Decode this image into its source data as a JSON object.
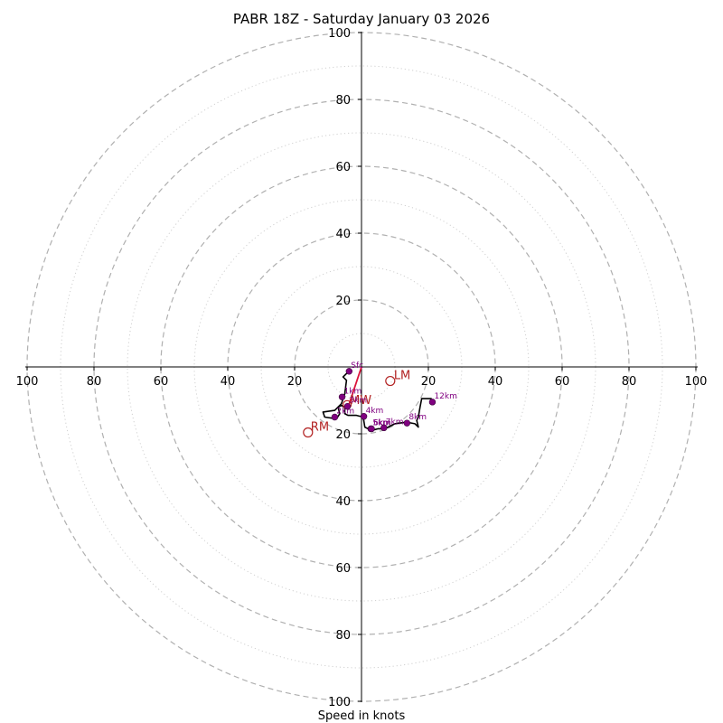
{
  "chart_data": {
    "type": "hodograph",
    "title": "PABR 18Z - Saturday January 03 2026",
    "xlabel": "Speed in knots",
    "units": "knots",
    "range": [
      -100,
      100
    ],
    "ring_major": [
      20,
      40,
      60,
      80,
      100
    ],
    "ring_minor": [
      10,
      30,
      50,
      70,
      90
    ],
    "ticks": [
      {
        "value": -100,
        "label": "100"
      },
      {
        "value": -80,
        "label": "80"
      },
      {
        "value": -60,
        "label": "60"
      },
      {
        "value": -40,
        "label": "40"
      },
      {
        "value": -20,
        "label": "20"
      },
      {
        "value": 20,
        "label": "20"
      },
      {
        "value": 40,
        "label": "40"
      },
      {
        "value": 60,
        "label": "60"
      },
      {
        "value": 80,
        "label": "80"
      },
      {
        "value": 100,
        "label": "100"
      }
    ],
    "hodograph_trace": [
      [
        -4,
        -1.5
      ],
      [
        -5.5,
        -3
      ],
      [
        -4.5,
        -4
      ],
      [
        -5,
        -8
      ],
      [
        -6,
        -11
      ],
      [
        -8,
        -13
      ],
      [
        -11.5,
        -13.5
      ],
      [
        -11,
        -15
      ],
      [
        -7.5,
        -15.5
      ],
      [
        -6.5,
        -14
      ],
      [
        -7,
        -12
      ],
      [
        -6,
        -11.5
      ],
      [
        -5,
        -12
      ],
      [
        -5,
        -14
      ],
      [
        -4,
        -14.5
      ],
      [
        -1.5,
        -14.5
      ],
      [
        0.5,
        -15
      ],
      [
        1,
        -18
      ],
      [
        3,
        -19
      ],
      [
        5,
        -18.5
      ],
      [
        7,
        -18.5
      ],
      [
        10,
        -17
      ],
      [
        13.5,
        -16.5
      ],
      [
        16,
        -17
      ],
      [
        17,
        -18
      ],
      [
        16.5,
        -16
      ],
      [
        17,
        -15
      ],
      [
        17.5,
        -12
      ],
      [
        18,
        -9.5
      ],
      [
        21,
        -9.5
      ]
    ],
    "height_points": [
      {
        "label": "Sfc",
        "u": -3.7,
        "v": -1.3
      },
      {
        "label": "1km",
        "u": -5.8,
        "v": -9
      },
      {
        "label": "2km",
        "u": -8,
        "v": -15
      },
      {
        "label": "3km",
        "u": -4.2,
        "v": -11.8
      },
      {
        "label": "4km",
        "u": 0.7,
        "v": -14.8
      },
      {
        "label": "5km",
        "u": 2.8,
        "v": -18.5
      },
      {
        "label": "6km",
        "u": 3,
        "v": -18.5
      },
      {
        "label": "7km",
        "u": 6.7,
        "v": -18.2
      },
      {
        "label": "8km",
        "u": 13.6,
        "v": -16.8
      },
      {
        "label": "12km",
        "u": 21.2,
        "v": -10.5
      }
    ],
    "storm_motion": {
      "lm": {
        "label": "LM",
        "u": 8.6,
        "v": -4.2
      },
      "rm": {
        "label": "RM",
        "u": -16,
        "v": -19.6
      },
      "mw": {
        "label": "MW",
        "u": -4.3,
        "v": -11.3
      },
      "shear_vector": {
        "from": [
          0,
          0
        ],
        "to": [
          -4,
          -12
        ]
      }
    },
    "colors": {
      "ring": "#b0b0b0",
      "trace": "#000000",
      "height_marker": "#800080",
      "storm_motion": "#b22222",
      "shear_vector": "#dc143c"
    }
  }
}
